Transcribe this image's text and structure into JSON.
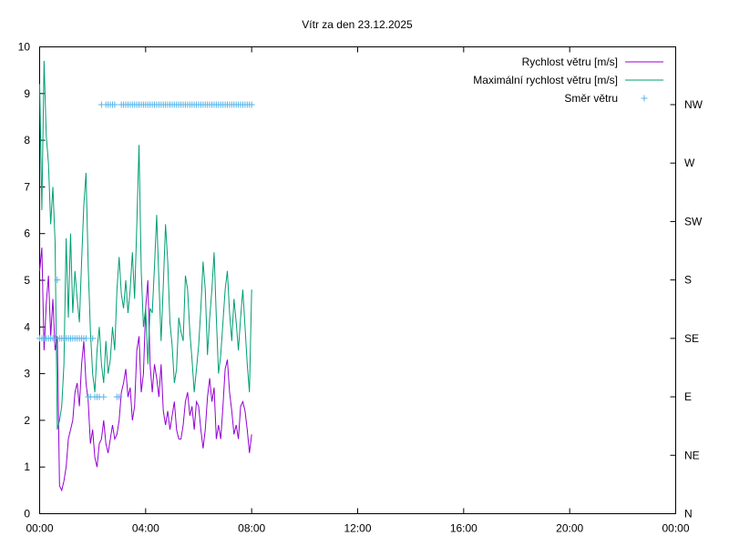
{
  "chart_data": {
    "type": "line",
    "title": "Vítr za den 23.12.2025",
    "xlabel": "",
    "ylabel": "",
    "x_ticks": [
      "00:00",
      "04:00",
      "08:00",
      "12:00",
      "16:00",
      "20:00",
      "00:00"
    ],
    "x_range_hours": [
      0,
      24
    ],
    "ylim": [
      0,
      10
    ],
    "y_ticks": [
      "0",
      "1",
      "2",
      "3",
      "4",
      "5",
      "6",
      "7",
      "8",
      "9",
      "10"
    ],
    "y2_ticks": [
      "N",
      "NE",
      "E",
      "SE",
      "S",
      "SW",
      "W",
      "NW"
    ],
    "grid": false,
    "legend_position": "top-right",
    "colors": {
      "speed": "#9400D3",
      "gust": "#009E73",
      "direction": "#56B4E9"
    },
    "series": [
      {
        "name": "Rychlost větru [m/s]",
        "style": "line",
        "color": "#9400D3",
        "times": [
          "00:00",
          "00:05",
          "00:10",
          "00:15",
          "00:20",
          "00:25",
          "00:30",
          "00:35",
          "00:40",
          "00:45",
          "00:50",
          "00:55",
          "01:00",
          "01:05",
          "01:10",
          "01:15",
          "01:20",
          "01:25",
          "01:30",
          "01:35",
          "01:40",
          "01:45",
          "01:50",
          "01:55",
          "02:00",
          "02:05",
          "02:10",
          "02:15",
          "02:20",
          "02:25",
          "02:30",
          "02:35",
          "02:40",
          "02:45",
          "02:50",
          "02:55",
          "03:00",
          "03:05",
          "03:10",
          "03:15",
          "03:20",
          "03:25",
          "03:30",
          "03:35",
          "03:40",
          "03:45",
          "03:50",
          "03:55",
          "04:00",
          "04:05",
          "04:10",
          "04:15",
          "04:20",
          "04:25",
          "04:30",
          "04:35",
          "04:40",
          "04:45",
          "04:50",
          "04:55",
          "05:00",
          "05:05",
          "05:10",
          "05:15",
          "05:20",
          "05:25",
          "05:30",
          "05:35",
          "05:40",
          "05:45",
          "05:50",
          "05:55",
          "06:00",
          "06:05",
          "06:10",
          "06:15",
          "06:20",
          "06:25",
          "06:30",
          "06:35",
          "06:40",
          "06:45",
          "06:50",
          "06:55",
          "07:00",
          "07:05",
          "07:10",
          "07:15",
          "07:20",
          "07:25",
          "07:30",
          "07:35",
          "07:40",
          "07:45",
          "07:50",
          "07:55",
          "08:00"
        ],
        "values": [
          5.2,
          5.7,
          3.5,
          4.5,
          5.1,
          3.8,
          4.6,
          3.5,
          3.8,
          0.6,
          0.5,
          0.7,
          1.0,
          1.6,
          1.8,
          2.0,
          2.6,
          2.8,
          2.3,
          3.2,
          3.7,
          2.8,
          2.4,
          1.5,
          1.8,
          1.2,
          1.0,
          1.5,
          1.6,
          2.0,
          1.5,
          1.3,
          1.6,
          1.9,
          1.6,
          1.7,
          2.0,
          2.6,
          2.8,
          3.1,
          2.5,
          2.7,
          2.0,
          2.3,
          3.5,
          3.8,
          2.6,
          3.0,
          4.4,
          5.0,
          3.2,
          2.6,
          3.2,
          2.9,
          2.5,
          3.2,
          2.2,
          1.9,
          2.2,
          1.8,
          2.1,
          2.4,
          1.8,
          1.6,
          1.6,
          1.9,
          2.4,
          2.6,
          2.1,
          2.3,
          1.8,
          2.4,
          2.3,
          1.8,
          1.4,
          1.8,
          2.5,
          2.9,
          2.4,
          2.7,
          1.6,
          1.9,
          1.6,
          2.3,
          3.1,
          3.3,
          2.6,
          2.2,
          1.7,
          1.9,
          1.6,
          2.3,
          2.4,
          2.2,
          1.8,
          1.3,
          1.7
        ]
      },
      {
        "name": "Maximální rychlost větru [m/s]",
        "style": "line",
        "color": "#009E73",
        "times": [
          "00:00",
          "00:05",
          "00:10",
          "00:15",
          "00:20",
          "00:25",
          "00:30",
          "00:35",
          "00:40",
          "00:45",
          "00:50",
          "00:55",
          "01:00",
          "01:05",
          "01:10",
          "01:15",
          "01:20",
          "01:25",
          "01:30",
          "01:35",
          "01:40",
          "01:45",
          "01:50",
          "01:55",
          "02:00",
          "02:05",
          "02:10",
          "02:15",
          "02:20",
          "02:25",
          "02:30",
          "02:35",
          "02:40",
          "02:45",
          "02:50",
          "02:55",
          "03:00",
          "03:05",
          "03:10",
          "03:15",
          "03:20",
          "03:25",
          "03:30",
          "03:35",
          "03:40",
          "03:45",
          "03:50",
          "03:55",
          "04:00",
          "04:05",
          "04:10",
          "04:15",
          "04:20",
          "04:25",
          "04:30",
          "04:35",
          "04:40",
          "04:45",
          "04:50",
          "04:55",
          "05:00",
          "05:05",
          "05:10",
          "05:15",
          "05:20",
          "05:25",
          "05:30",
          "05:35",
          "05:40",
          "05:45",
          "05:50",
          "05:55",
          "06:00",
          "06:05",
          "06:10",
          "06:15",
          "06:20",
          "06:25",
          "06:30",
          "06:35",
          "06:40",
          "06:45",
          "06:50",
          "06:55",
          "07:00",
          "07:05",
          "07:10",
          "07:15",
          "07:20",
          "07:25",
          "07:30",
          "07:35",
          "07:40",
          "07:45",
          "07:50",
          "07:55",
          "08:00"
        ],
        "values": [
          9.2,
          6.5,
          9.7,
          8.1,
          7.5,
          6.2,
          7.0,
          5.8,
          1.8,
          2.0,
          2.3,
          3.2,
          5.9,
          4.2,
          6.0,
          4.3,
          5.2,
          4.6,
          4.1,
          5.4,
          6.6,
          7.3,
          5.3,
          3.9,
          3.0,
          2.6,
          3.5,
          4.0,
          3.2,
          2.8,
          3.7,
          3.0,
          3.3,
          4.0,
          3.5,
          4.8,
          5.5,
          4.7,
          4.4,
          5.0,
          4.3,
          4.8,
          5.6,
          4.6,
          6.2,
          7.9,
          5.2,
          4.0,
          4.4,
          3.2,
          4.4,
          4.3,
          5.3,
          6.4,
          5.0,
          3.7,
          4.9,
          6.2,
          5.4,
          4.1,
          3.6,
          2.8,
          3.1,
          4.2,
          3.9,
          3.7,
          5.1,
          4.8,
          3.9,
          3.3,
          2.6,
          3.1,
          3.6,
          4.4,
          5.4,
          4.8,
          3.4,
          4.2,
          4.8,
          5.6,
          4.2,
          3.0,
          3.4,
          4.1,
          4.8,
          5.2,
          4.3,
          3.7,
          4.6,
          4.1,
          3.5,
          4.2,
          4.8,
          4.0,
          3.2,
          2.6,
          4.8
        ]
      },
      {
        "name": "Směr větru",
        "style": "points",
        "color": "#56B4E9",
        "times": [
          "00:00",
          "00:05",
          "00:10",
          "00:15",
          "00:20",
          "00:25",
          "00:30",
          "00:35",
          "00:40",
          "00:45",
          "00:50",
          "00:55",
          "01:00",
          "01:05",
          "01:10",
          "01:15",
          "01:20",
          "01:25",
          "01:30",
          "01:35",
          "01:40",
          "01:45",
          "01:50",
          "01:55",
          "02:00",
          "02:05",
          "02:10",
          "02:15",
          "02:20",
          "02:25",
          "02:30",
          "02:35",
          "02:40",
          "02:45",
          "02:50",
          "02:55",
          "03:00",
          "03:05",
          "03:10",
          "03:15",
          "03:20",
          "03:25",
          "03:30",
          "03:35",
          "03:40",
          "03:45",
          "03:50",
          "03:55",
          "04:00",
          "04:05",
          "04:10",
          "04:15",
          "04:20",
          "04:25",
          "04:30",
          "04:35",
          "04:40",
          "04:45",
          "04:50",
          "04:55",
          "05:00",
          "05:05",
          "05:10",
          "05:15",
          "05:20",
          "05:25",
          "05:30",
          "05:35",
          "05:40",
          "05:45",
          "05:50",
          "05:55",
          "06:00",
          "06:05",
          "06:10",
          "06:15",
          "06:20",
          "06:25",
          "06:30",
          "06:35",
          "06:40",
          "06:45",
          "06:50",
          "06:55",
          "07:00",
          "07:05",
          "07:10",
          "07:15",
          "07:20",
          "07:25",
          "07:30",
          "07:35",
          "07:40",
          "07:45",
          "07:50",
          "07:55",
          "08:00"
        ],
        "values": [
          "SE",
          "SE",
          "SE",
          "SE",
          "SE",
          "SE",
          "SE",
          "SE",
          "S",
          "SE",
          "SE",
          "SE",
          "SE",
          "SE",
          "SE",
          "SE",
          "SE",
          "SE",
          "SE",
          "SE",
          "SE",
          "SE",
          "E",
          "E",
          "SE",
          "E",
          "E",
          "E",
          "NW",
          "E",
          "NW",
          "NW",
          "NW",
          "NW",
          "NW",
          "E",
          "E",
          "NW",
          "NW",
          "NW",
          "NW",
          "NW",
          "NW",
          "NW",
          "NW",
          "NW",
          "NW",
          "NW",
          "NW",
          "NW",
          "NW",
          "NW",
          "NW",
          "NW",
          "NW",
          "NW",
          "NW",
          "NW",
          "NW",
          "NW",
          "NW",
          "NW",
          "NW",
          "NW",
          "NW",
          "NW",
          "NW",
          "NW",
          "NW",
          "NW",
          "NW",
          "NW",
          "NW",
          "NW",
          "NW",
          "NW",
          "NW",
          "NW",
          "NW",
          "NW",
          "NW",
          "NW",
          "NW",
          "NW",
          "NW",
          "NW",
          "NW",
          "NW",
          "NW",
          "NW",
          "NW",
          "NW",
          "NW",
          "NW",
          "NW",
          "NW",
          "NW"
        ]
      }
    ]
  }
}
